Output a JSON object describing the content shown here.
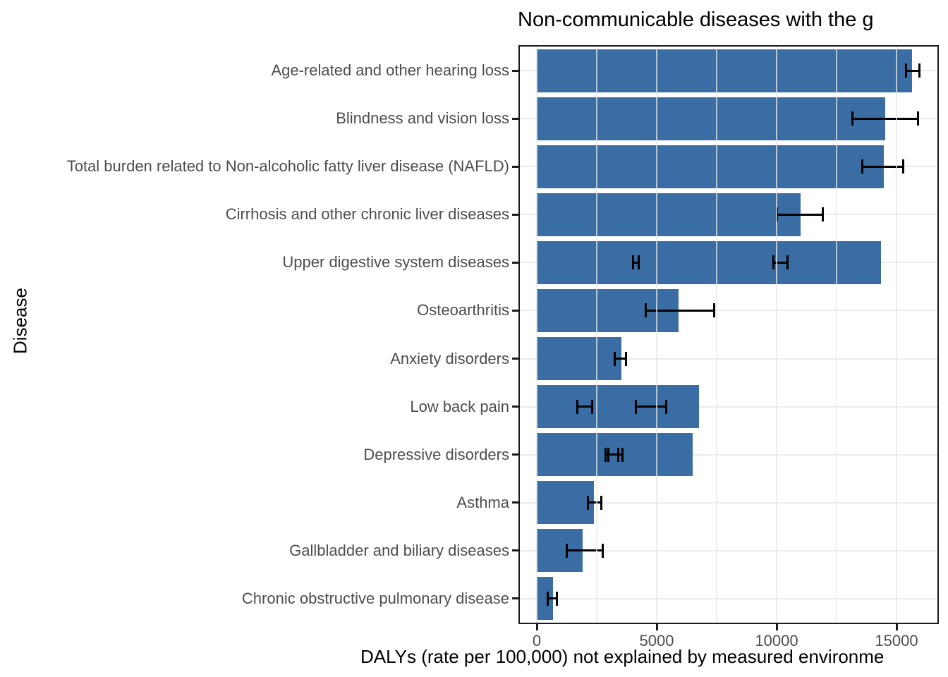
{
  "chart_data": {
    "type": "bar",
    "orientation": "horizontal",
    "title": "Non-communicable diseases with the g",
    "xlabel": "DALYs (rate per 100,000) not explained by measured environme",
    "ylabel": "Disease",
    "categories": [
      "Age-related and other hearing loss",
      "Blindness and vision loss",
      "Total burden related to Non-alcoholic fatty liver disease (NAFLD)",
      "Cirrhosis and other chronic liver diseases",
      "Upper digestive system diseases",
      "Osteoarthritis",
      "Anxiety disorders",
      "Low back pain",
      "Depressive disorders",
      "Asthma",
      "Gallbladder and biliary diseases",
      "Chronic obstructive pulmonary disease"
    ],
    "values": [
      15650,
      14530,
      14470,
      11000,
      14350,
      5910,
      3530,
      6760,
      6500,
      2380,
      1910,
      680
    ],
    "error_bars": [
      [
        [
          15400,
          15970
        ]
      ],
      [
        [
          13150,
          15910
        ]
      ],
      [
        [
          13560,
          15270
        ]
      ],
      [
        [
          10000,
          11940
        ]
      ],
      [
        [
          4000,
          4240
        ],
        [
          9880,
          10470
        ]
      ],
      [
        [
          4550,
          7400
        ]
      ],
      [
        [
          3240,
          3710
        ]
      ],
      [
        [
          1680,
          2320
        ],
        [
          4120,
          5410
        ]
      ],
      [
        [
          2880,
          3410
        ],
        [
          2980,
          3570
        ]
      ],
      [
        [
          2120,
          2680
        ]
      ],
      [
        [
          1260,
          2740
        ]
      ],
      [
        [
          470,
          850
        ]
      ]
    ],
    "x_ticks": [
      0,
      5000,
      10000,
      15000
    ],
    "x_tick_labels": [
      "0",
      "5000",
      "10000",
      "15000"
    ],
    "x_minor_ticks": [
      2500,
      7500,
      12500
    ],
    "xlim": [
      -765,
      16735
    ],
    "grid": "on",
    "legend": "none",
    "colors": {
      "bar_fill": "#3A6DA4",
      "gridline": "#EBEBEB",
      "axis_text": "#4D4D4D",
      "axis_line": "#1B1B1B",
      "error_bar": "#000000",
      "title_text": "#000000"
    }
  }
}
